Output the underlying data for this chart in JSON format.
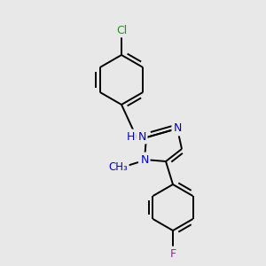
{
  "background_color": "#e8e8e8",
  "atom_colors": {
    "C": "#000000",
    "N": "#0000cd",
    "Cl": "#00aa00",
    "F": "#cc00cc",
    "H": "#0000cd"
  },
  "bond_color": "#000000",
  "bond_width": 1.4,
  "figsize": [
    3.0,
    3.0
  ],
  "dpi": 100,
  "xlim": [
    0,
    300
  ],
  "ylim": [
    0,
    300
  ]
}
